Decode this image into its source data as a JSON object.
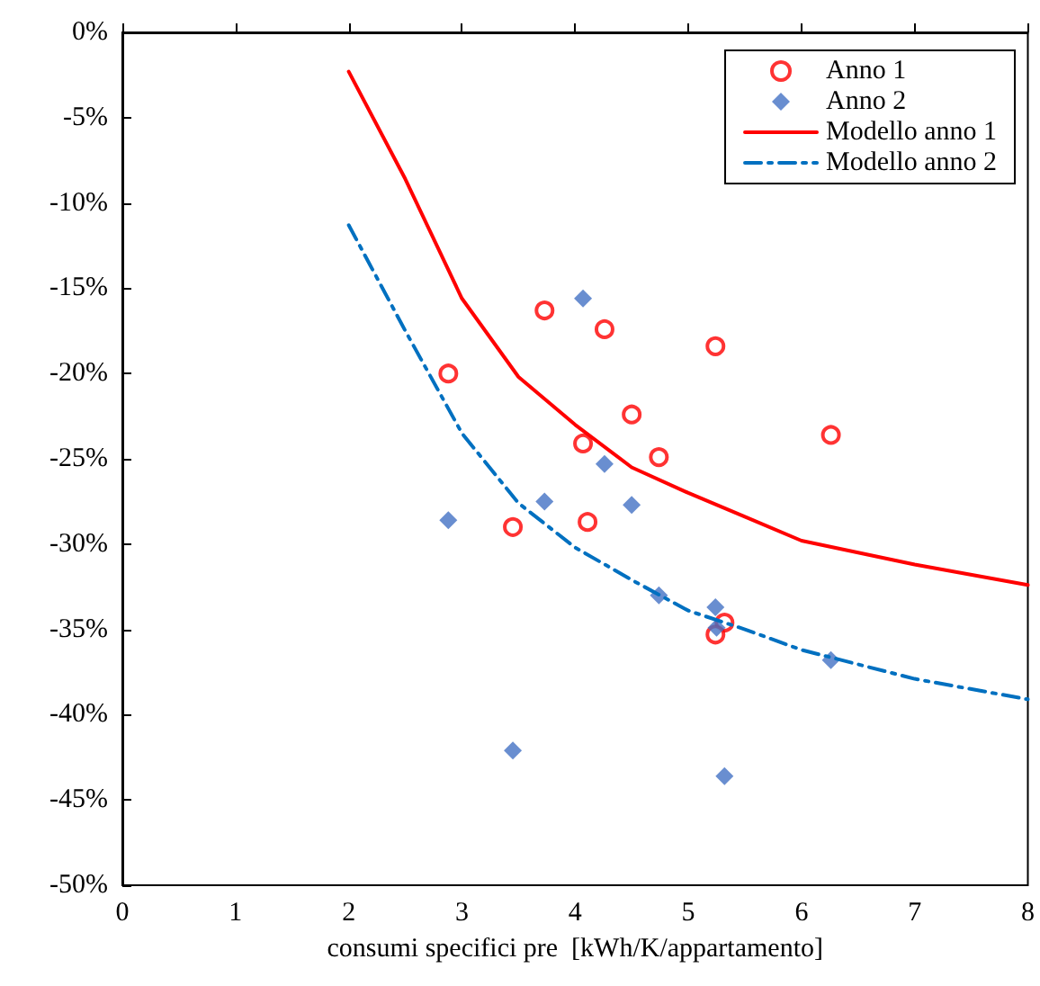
{
  "chart_data": {
    "type": "scatter",
    "xlabel": "consumi specifici pre  [kWh/K/appartamento]",
    "xlim": [
      0,
      8
    ],
    "xticks": [
      0,
      1,
      2,
      3,
      4,
      5,
      6,
      7,
      8
    ],
    "ylim": [
      -50,
      0
    ],
    "yticks": [
      {
        "value": -50,
        "label": "-50%"
      },
      {
        "value": -45,
        "label": "-45%"
      },
      {
        "value": -40,
        "label": "-40%"
      },
      {
        "value": -35,
        "label": "-35%"
      },
      {
        "value": -30,
        "label": "-30%"
      },
      {
        "value": -25,
        "label": "-25%"
      },
      {
        "value": -20,
        "label": "-20%"
      },
      {
        "value": -15,
        "label": "-15%"
      },
      {
        "value": -10,
        "label": "-10%"
      },
      {
        "value": -5,
        "label": "-5%"
      },
      {
        "value": 0,
        "label": "0%"
      }
    ],
    "grid": false,
    "legend": "top right",
    "series": [
      {
        "name": "Anno 1",
        "marker": "circle",
        "color": "#ff0000",
        "x": [
          2.88,
          3.73,
          4.26,
          5.24,
          4.5,
          4.07,
          4.74,
          6.26,
          3.45,
          4.11,
          5.32,
          5.24
        ],
        "values": [
          -20.0,
          -16.3,
          -17.4,
          -18.4,
          -22.4,
          -24.1,
          -24.9,
          -23.6,
          -29.0,
          -28.7,
          -34.6,
          -35.3
        ]
      },
      {
        "name": "Anno 2",
        "marker": "diamond",
        "color": "#4472c4",
        "x": [
          4.07,
          2.88,
          3.73,
          4.26,
          4.5,
          4.74,
          5.24,
          5.25,
          6.26,
          3.45,
          5.32
        ],
        "values": [
          -15.6,
          -28.6,
          -27.5,
          -25.3,
          -27.7,
          -33.0,
          -33.7,
          -34.9,
          -36.8,
          -42.1,
          -43.6
        ]
      },
      {
        "name": "Modello anno 1",
        "type": "line",
        "marker": "none",
        "line_style": "solid",
        "color": "#ff0000",
        "x": [
          2,
          2.5,
          3,
          3.5,
          4,
          4.5,
          5,
          5.5,
          6,
          7,
          8
        ],
        "values": [
          -2.3,
          -8.6,
          -15.6,
          -20.2,
          -23.0,
          -25.5,
          -27.0,
          -28.4,
          -29.8,
          -31.2,
          -32.4
        ]
      },
      {
        "name": "Modello anno 2",
        "type": "line",
        "marker": "none",
        "line_style": "dashed",
        "color": "#0070c0",
        "x": [
          2,
          2.5,
          3,
          3.5,
          4,
          4.5,
          5,
          5.5,
          6,
          7,
          8
        ],
        "values": [
          -11.3,
          -17.5,
          -23.5,
          -27.6,
          -30.2,
          -32.1,
          -33.9,
          -35.0,
          -36.2,
          -37.9,
          -39.1
        ]
      }
    ]
  }
}
